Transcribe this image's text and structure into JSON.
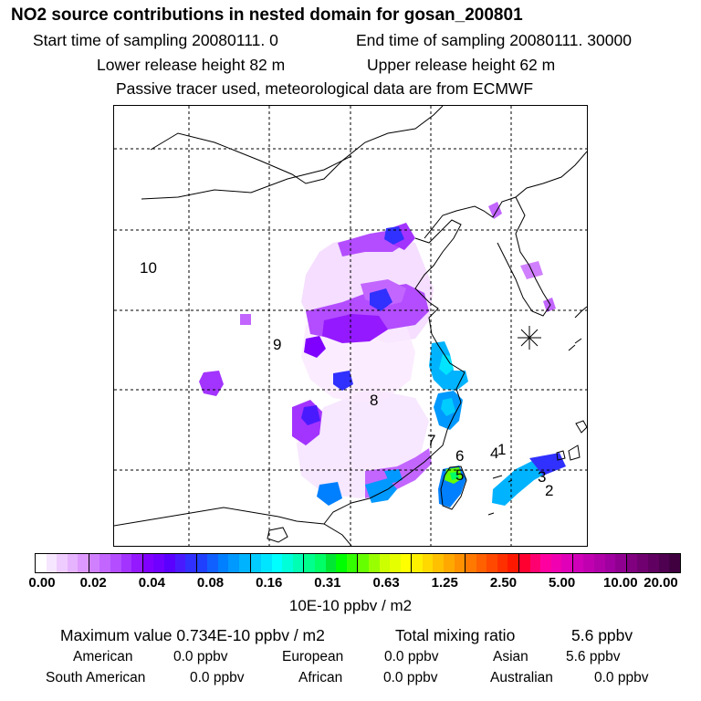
{
  "header": {
    "title": "NO2 source contributions in nested domain for gosan_200801",
    "start_label": "Start time of sampling 20080111.     0",
    "end_label": "End time of sampling 20080111. 30000",
    "lower_label": "Lower release height   82 m",
    "upper_label": "Upper release height   62 m",
    "note": "Passive tracer used, meteorological data are from ECMWF"
  },
  "chart_data": {
    "type": "heatmap",
    "title": "NO2 source contributions in nested domain for gosan_200801",
    "colorbar": {
      "ticks": [
        "0.00",
        "0.02",
        "0.04",
        "0.08",
        "0.16",
        "0.31",
        "0.63",
        "1.25",
        "2.50",
        "5.00",
        "10.00",
        "20.00"
      ],
      "label": "10E-10 ppbv / m2",
      "colors": [
        "#ffffff",
        "#f7e6ff",
        "#efccff",
        "#e6b3ff",
        "#dd99ff",
        "#d080ff",
        "#c266ff",
        "#b34dff",
        "#a333ff",
        "#9419ff",
        "#8000ff",
        "#7000ff",
        "#5a00ff",
        "#4a1aff",
        "#3030ff",
        "#2040ff",
        "#1060ff",
        "#0080ff",
        "#0099ff",
        "#00b3ff",
        "#00ccff",
        "#00e5ff",
        "#00ffff",
        "#00ffd9",
        "#00ffb3",
        "#00ff8c",
        "#00ff66",
        "#00e633",
        "#00ff00",
        "#33ff00",
        "#66ff00",
        "#99ff00",
        "#ccff00",
        "#e6ff00",
        "#ffff00",
        "#fff000",
        "#ffd900",
        "#ffc000",
        "#ffa800",
        "#ff9000",
        "#ff7800",
        "#ff6000",
        "#ff4800",
        "#ff3000",
        "#ff1800",
        "#ff0030",
        "#ff0070",
        "#ff00a0",
        "#f000b0",
        "#e000b8",
        "#d000b8",
        "#c000b0",
        "#b000a8",
        "#a000a0",
        "#900090",
        "#800080",
        "#700070",
        "#600060",
        "#500050",
        "#400040"
      ]
    },
    "labels": [
      "10",
      "9",
      "8",
      "7",
      "6",
      "5",
      "4",
      "3",
      "2",
      "1"
    ],
    "marker": "gosan"
  },
  "stats": {
    "max_label": "Maximum value  0.734E-10 ppbv / m2",
    "total_label": "Total mixing ratio",
    "total_value": "5.6 ppbv",
    "american_label": "American",
    "american_value": "0.0 ppbv",
    "european_label": "European",
    "european_value": "0.0 ppbv",
    "asian_label": "Asian",
    "asian_value": "5.6 ppbv",
    "south_american_label": "South American",
    "south_american_value": "0.0 ppbv",
    "african_label": "African",
    "african_value": "0.0 ppbv",
    "australian_label": "Australian",
    "australian_value": "0.0 ppbv"
  }
}
